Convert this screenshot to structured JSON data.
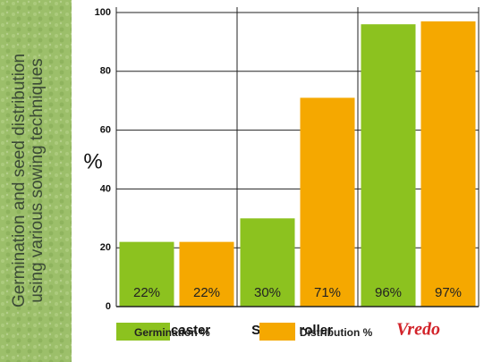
{
  "chart_data": {
    "type": "bar",
    "title_lines": [
      "Germination and seed distribution",
      "using various sowing techniques"
    ],
    "ylabel": "%",
    "categories": [
      "Broadcaster",
      "Spiked roller",
      "Vredo"
    ],
    "series": [
      {
        "name": "Germination %",
        "color": "#8cc21f",
        "values": [
          22,
          30,
          96
        ],
        "value_labels": [
          "22%",
          "30%",
          "96%"
        ]
      },
      {
        "name": "Distribution %",
        "color": "#f5a800",
        "values": [
          22,
          71,
          97
        ],
        "value_labels": [
          "22%",
          "71%",
          "97%"
        ]
      }
    ],
    "ylim": [
      0,
      100
    ],
    "yticks": [
      0,
      20,
      40,
      60,
      80,
      100
    ],
    "grid": true
  }
}
